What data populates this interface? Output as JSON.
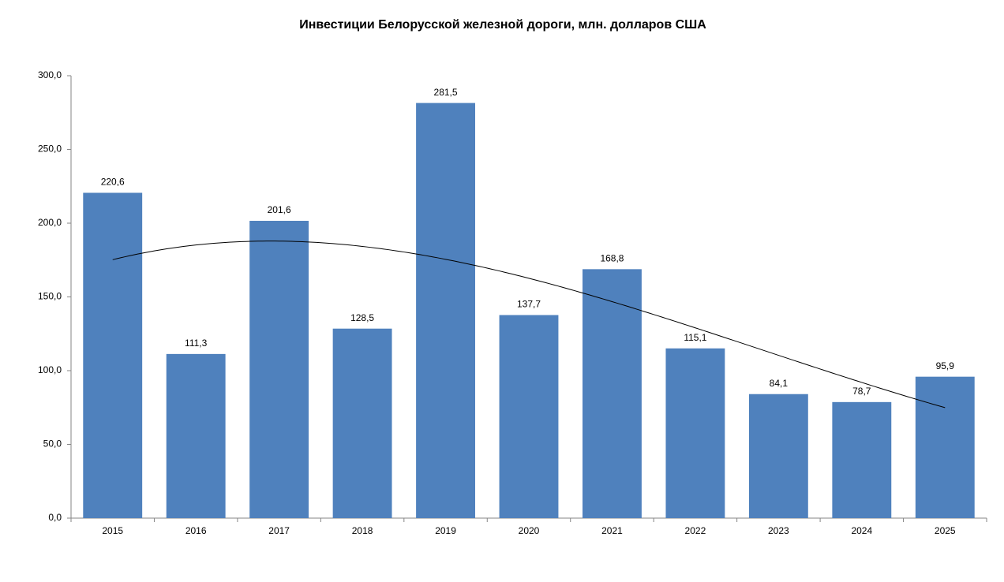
{
  "chart_data": {
    "type": "bar",
    "title": "Инвестиции Белорусской железной дороги, млн. долларов США",
    "categories": [
      "2015",
      "2016",
      "2017",
      "2018",
      "2019",
      "2020",
      "2021",
      "2022",
      "2023",
      "2024",
      "2025"
    ],
    "values": [
      220.6,
      111.3,
      201.6,
      128.5,
      281.5,
      137.7,
      168.8,
      115.1,
      84.1,
      78.7,
      95.9
    ],
    "value_labels": [
      "220,6",
      "111,3",
      "201,6",
      "128,5",
      "281,5",
      "137,7",
      "168,8",
      "115,1",
      "84,1",
      "78,7",
      "95,9"
    ],
    "color": "#4f81bd",
    "ylim": [
      0,
      300
    ],
    "yticks": [
      {
        "value": 0,
        "label": "0,0"
      },
      {
        "value": 50,
        "label": "50,0"
      },
      {
        "value": 100,
        "label": "100,0"
      },
      {
        "value": 150,
        "label": "150,0"
      },
      {
        "value": 200,
        "label": "200,0"
      },
      {
        "value": 250,
        "label": "250,0"
      },
      {
        "value": 300,
        "label": "300,0"
      }
    ],
    "grid": false,
    "trendline": {
      "type": "polynomial",
      "order": 3,
      "color": "#000000"
    }
  }
}
